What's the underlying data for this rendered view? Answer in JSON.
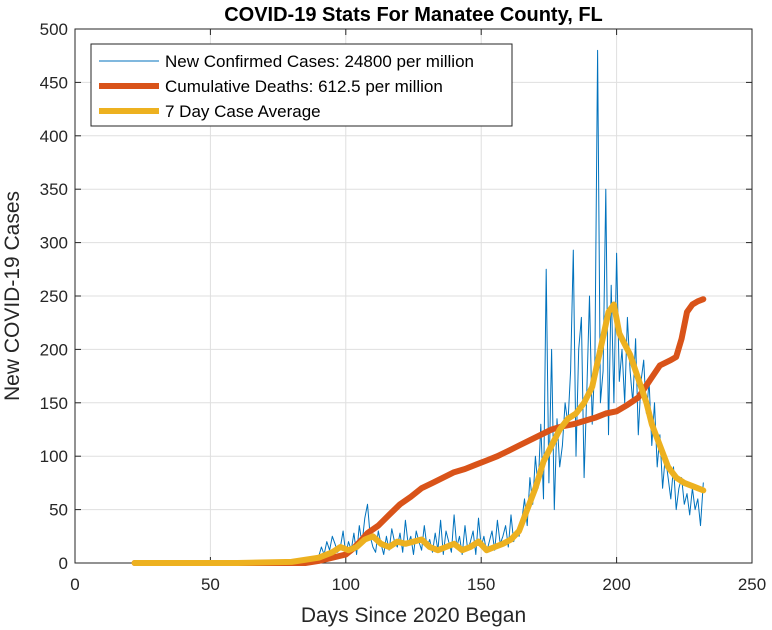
{
  "chart_data": {
    "type": "line",
    "title": "COVID-19 Stats For Manatee County, FL",
    "xlabel": "Days Since 2020 Began",
    "ylabel": "New COVID-19 Cases",
    "xlim": [
      0,
      250
    ],
    "ylim": [
      0,
      500
    ],
    "xticks": [
      0,
      50,
      100,
      150,
      200,
      250
    ],
    "yticks": [
      0,
      50,
      100,
      150,
      200,
      250,
      300,
      350,
      400,
      450,
      500
    ],
    "grid": true,
    "legend_position": "top-left",
    "colors": {
      "new_cases": "#0072BD",
      "deaths": "#D95319",
      "avg": "#EDB120",
      "grid": "#DFDFDF",
      "axis": "#262626"
    },
    "series": [
      {
        "name": "New Confirmed Cases: 24800 per million",
        "key": "new_cases",
        "x": [
          22,
          40,
          60,
          75,
          80,
          85,
          88,
          90,
          91,
          92,
          93,
          94,
          95,
          96,
          97,
          98,
          99,
          100,
          101,
          102,
          103,
          104,
          105,
          106,
          107,
          108,
          109,
          110,
          111,
          112,
          113,
          114,
          115,
          116,
          117,
          118,
          119,
          120,
          121,
          122,
          123,
          124,
          125,
          126,
          127,
          128,
          129,
          130,
          131,
          132,
          133,
          134,
          135,
          136,
          137,
          138,
          139,
          140,
          141,
          142,
          143,
          144,
          145,
          146,
          147,
          148,
          149,
          150,
          151,
          152,
          153,
          154,
          155,
          156,
          157,
          158,
          159,
          160,
          161,
          162,
          163,
          164,
          165,
          166,
          167,
          168,
          169,
          170,
          171,
          172,
          173,
          174,
          175,
          176,
          177,
          178,
          179,
          180,
          181,
          182,
          183,
          184,
          185,
          186,
          187,
          188,
          189,
          190,
          191,
          192,
          193,
          194,
          195,
          196,
          197,
          198,
          199,
          200,
          201,
          202,
          203,
          204,
          205,
          206,
          207,
          208,
          209,
          210,
          211,
          212,
          213,
          214,
          215,
          216,
          217,
          218,
          219,
          220,
          221,
          222,
          223,
          224,
          225,
          226,
          227,
          228,
          229,
          230,
          231,
          232
        ],
        "y": [
          0,
          0,
          0,
          0,
          2,
          4,
          3,
          6,
          15,
          8,
          20,
          12,
          25,
          18,
          10,
          15,
          30,
          8,
          20,
          12,
          28,
          8,
          35,
          18,
          42,
          55,
          25,
          15,
          10,
          30,
          18,
          8,
          25,
          12,
          32,
          20,
          15,
          28,
          10,
          40,
          18,
          25,
          8,
          30,
          20,
          12,
          35,
          15,
          22,
          10,
          28,
          12,
          40,
          8,
          30,
          20,
          10,
          45,
          15,
          25,
          8,
          35,
          12,
          20,
          30,
          8,
          42,
          15,
          25,
          10,
          20,
          30,
          12,
          40,
          18,
          25,
          35,
          15,
          45,
          20,
          30,
          25,
          40,
          60,
          35,
          80,
          55,
          100,
          70,
          130,
          60,
          275,
          75,
          200,
          50,
          135,
          90,
          110,
          150,
          130,
          180,
          293,
          100,
          200,
          230,
          80,
          160,
          250,
          130,
          190,
          480,
          150,
          180,
          350,
          120,
          260,
          150,
          290,
          170,
          200,
          150,
          230,
          180,
          150,
          210,
          120,
          170,
          190,
          140,
          170,
          110,
          150,
          90,
          120,
          70,
          100,
          80,
          60,
          90,
          50,
          70,
          80,
          55,
          65,
          45,
          70,
          50,
          60,
          35,
          75
        ]
      },
      {
        "name": "Cumulative Deaths: 612.5 per million",
        "key": "deaths",
        "x": [
          22,
          60,
          85,
          90,
          95,
          100,
          103,
          106,
          108,
          112,
          116,
          120,
          124,
          128,
          132,
          136,
          140,
          144,
          148,
          152,
          156,
          160,
          164,
          168,
          172,
          176,
          180,
          184,
          188,
          192,
          196,
          200,
          204,
          208,
          212,
          216,
          220,
          222,
          224,
          226,
          228,
          230,
          232
        ],
        "y": [
          0,
          0,
          0,
          2,
          5,
          8,
          14,
          22,
          28,
          35,
          45,
          55,
          62,
          70,
          75,
          80,
          85,
          88,
          92,
          96,
          100,
          105,
          110,
          115,
          120,
          125,
          128,
          130,
          133,
          136,
          140,
          142,
          148,
          155,
          170,
          185,
          190,
          193,
          210,
          235,
          242,
          245,
          247
        ]
      },
      {
        "name": "7 Day Case Average",
        "key": "avg",
        "x": [
          22,
          60,
          80,
          90,
          95,
          98,
          101,
          104,
          107,
          110,
          113,
          116,
          119,
          122,
          125,
          128,
          131,
          134,
          137,
          140,
          143,
          146,
          149,
          152,
          155,
          158,
          161,
          164,
          167,
          170,
          173,
          176,
          179,
          182,
          185,
          188,
          191,
          194,
          197,
          199,
          201,
          203,
          205,
          207,
          209,
          211,
          213,
          216,
          219,
          222,
          225,
          228,
          230,
          232
        ],
        "y": [
          0,
          0,
          1,
          5,
          10,
          15,
          12,
          15,
          22,
          25,
          18,
          15,
          20,
          18,
          20,
          22,
          15,
          12,
          15,
          18,
          12,
          15,
          20,
          12,
          15,
          18,
          22,
          30,
          50,
          70,
          95,
          110,
          125,
          135,
          140,
          150,
          165,
          200,
          235,
          242,
          215,
          205,
          195,
          180,
          165,
          150,
          130,
          110,
          90,
          80,
          75,
          72,
          70,
          68
        ]
      }
    ]
  }
}
